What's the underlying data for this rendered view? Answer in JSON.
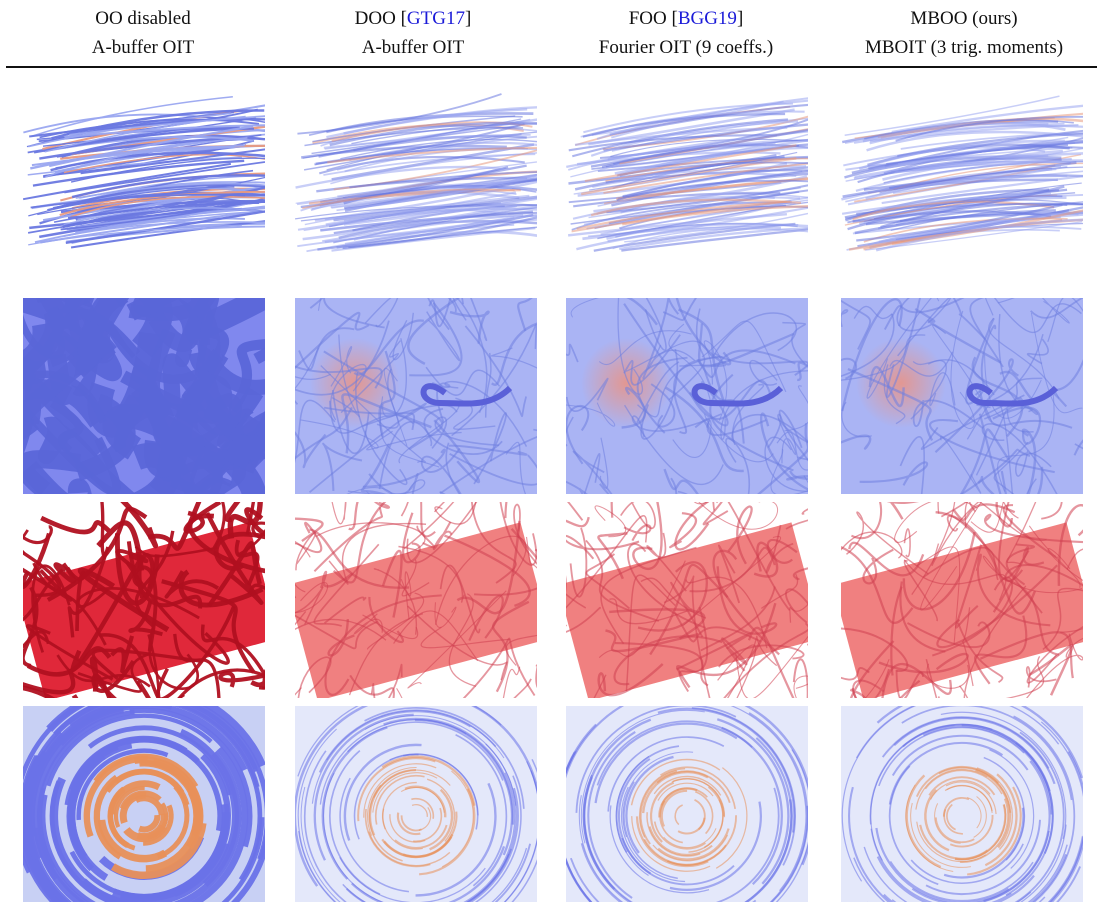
{
  "columns": [
    {
      "title": {
        "text": "OO disabled"
      },
      "method": "A-buffer OIT"
    },
    {
      "title": {
        "text": "DOO [",
        "cite": "GTG17",
        "after": "]"
      },
      "method": "A-buffer OIT"
    },
    {
      "title": {
        "text": "FOO [",
        "cite": "BGG19",
        "after": "]"
      },
      "method": "Fourier OIT (9 coeffs.)"
    },
    {
      "title": {
        "text": "MBOO (ours)"
      },
      "method": "MBOIT (3 trig. moments)"
    }
  ]
}
